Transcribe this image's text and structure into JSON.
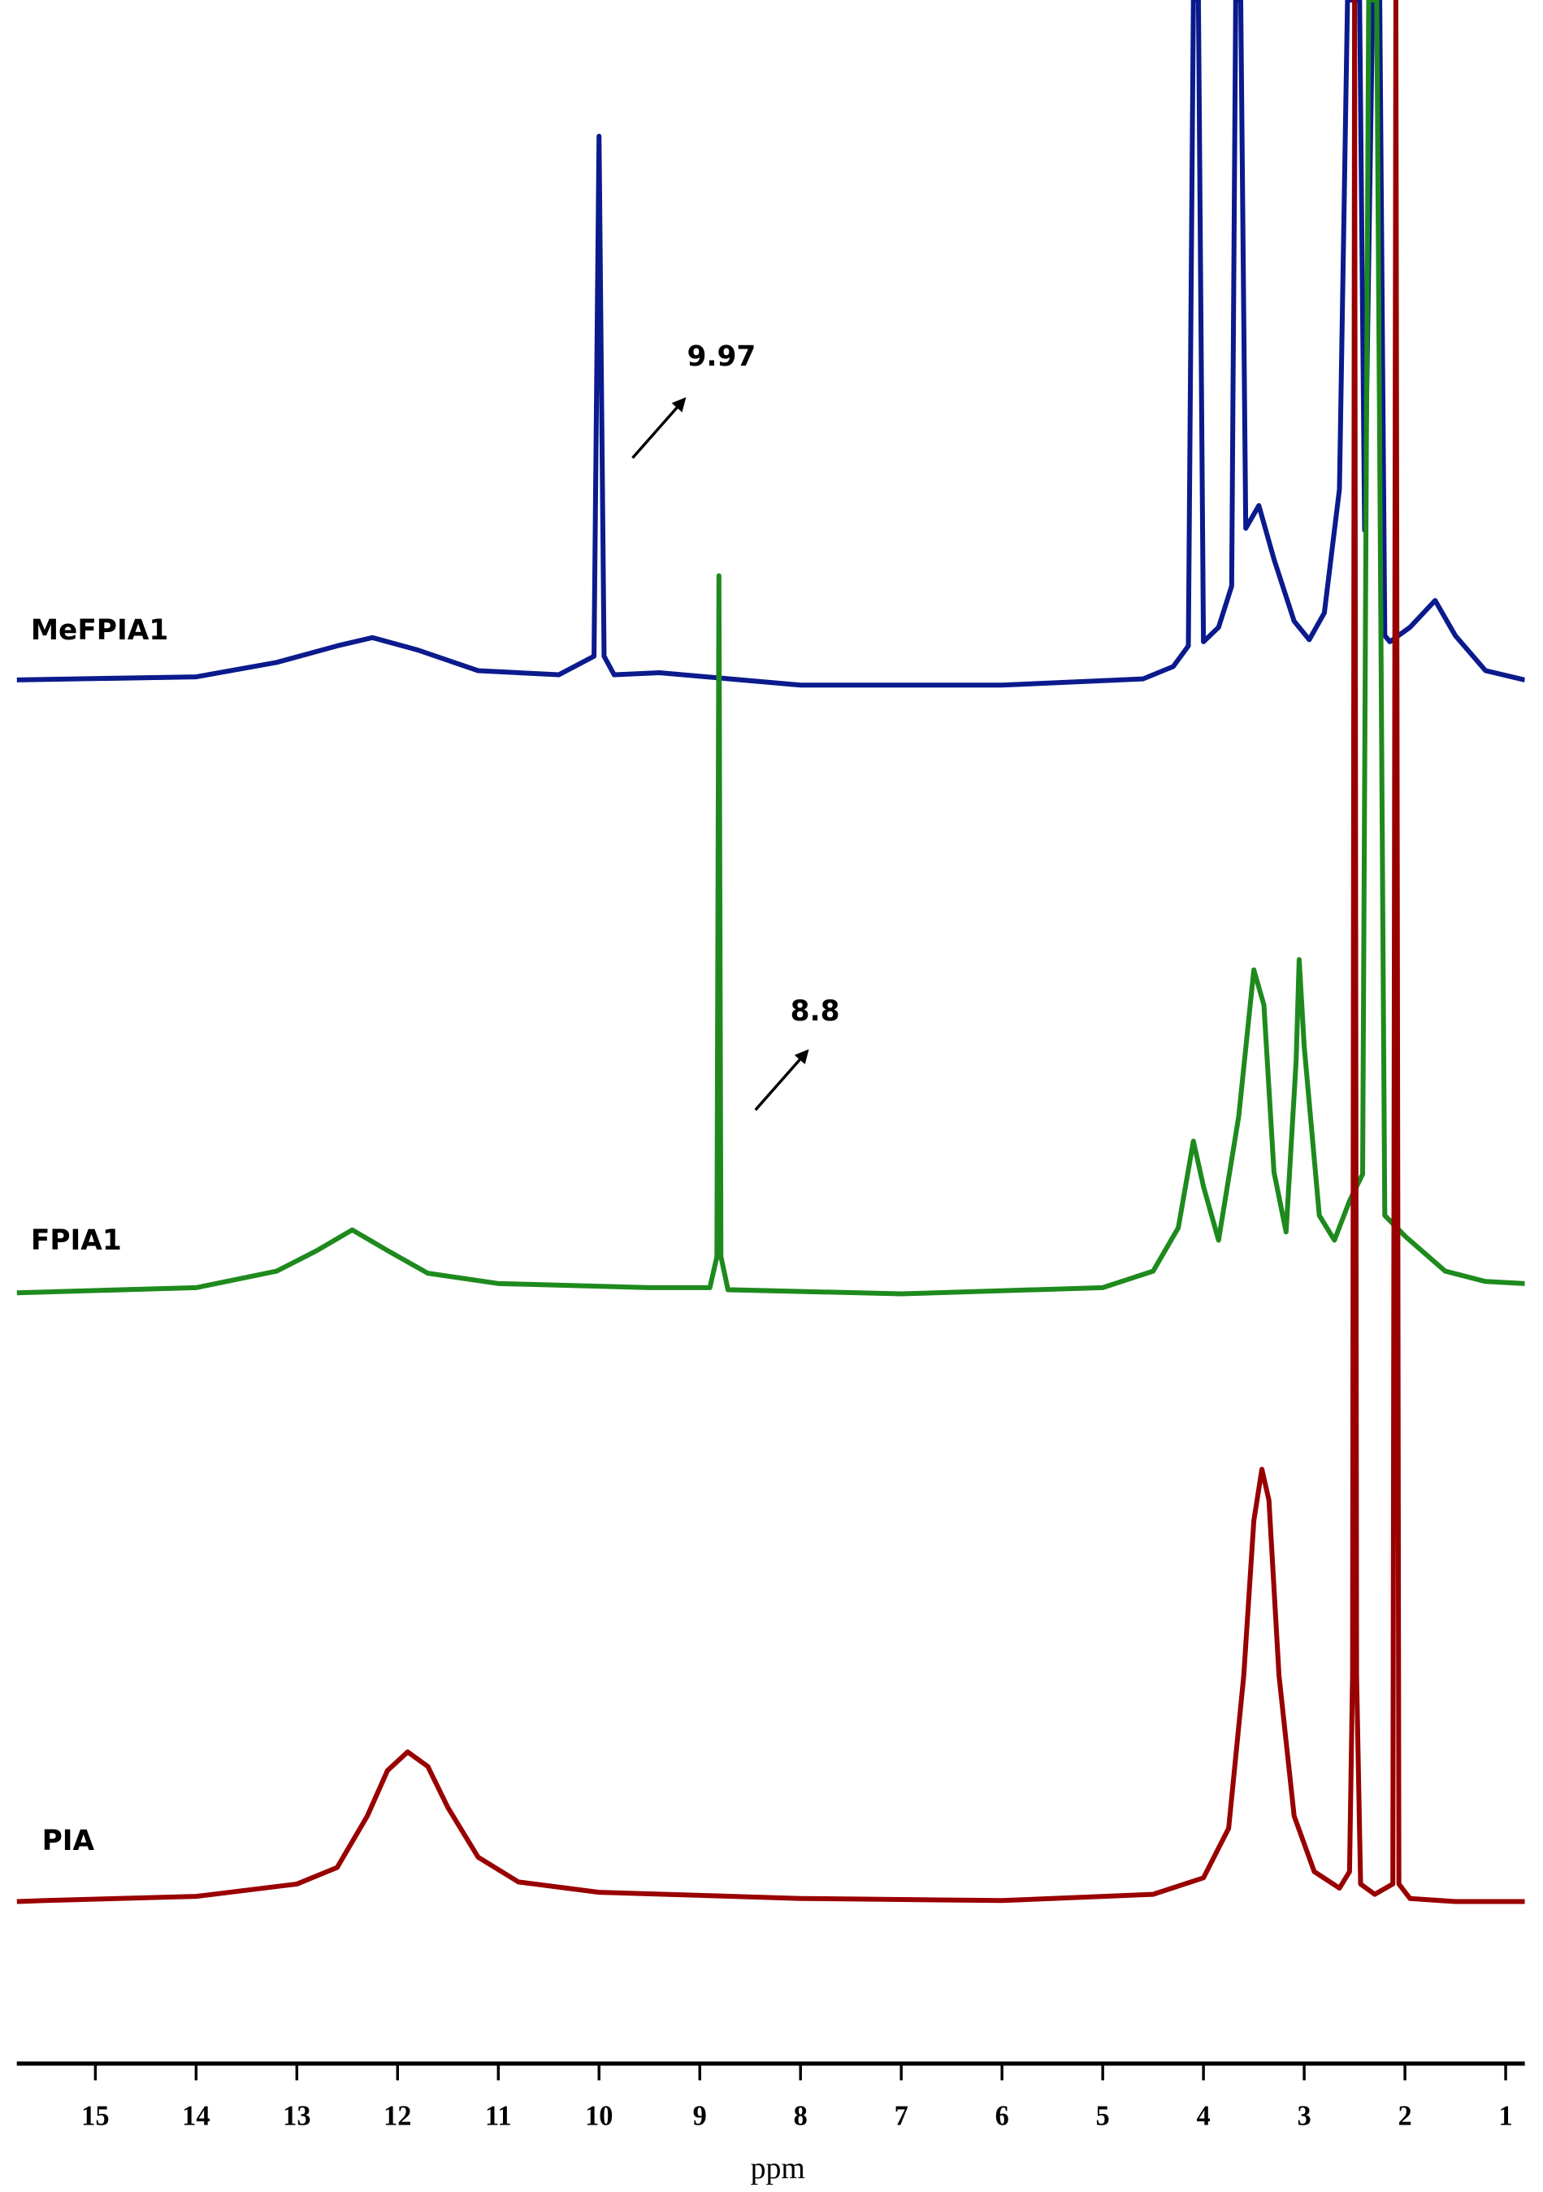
{
  "chart_data": {
    "type": "line",
    "xlabel": "ppm",
    "xlim": [
      15.78,
      0.81
    ],
    "ylim": [
      0,
      100
    ],
    "xticks": [
      15,
      14,
      13,
      12,
      11,
      10,
      9,
      8,
      7,
      6,
      5,
      4,
      3,
      2,
      1
    ],
    "series": [
      {
        "name": "MeFPIA1",
        "color": "#0b1a8c",
        "x": [
          15.78,
          14,
          13.2,
          12.6,
          12.25,
          11.8,
          11.2,
          10.4,
          10.05,
          10.0,
          9.95,
          9.85,
          9.4,
          8,
          6,
          4.6,
          4.3,
          4.15,
          4.1,
          4.05,
          4.0,
          3.85,
          3.72,
          3.68,
          3.63,
          3.58,
          3.45,
          3.3,
          3.1,
          2.95,
          2.8,
          2.65,
          2.57,
          2.45,
          2.4,
          2.32,
          2.25,
          2.2,
          2.15,
          1.95,
          1.7,
          1.5,
          1.2,
          0.81
        ],
        "values": [
          67.05,
          67.2,
          67.9,
          68.7,
          69.1,
          68.5,
          67.5,
          67.3,
          68.2,
          93.4,
          68.2,
          67.3,
          67.4,
          66.8,
          66.8,
          67.1,
          67.7,
          68.7,
          100,
          100,
          68.9,
          69.6,
          71.6,
          100,
          100,
          74.4,
          75.5,
          72.9,
          69.9,
          69.0,
          70.3,
          76.3,
          100,
          100,
          74.3,
          100,
          100,
          69.2,
          68.9,
          69.6,
          70.9,
          69.2,
          67.5,
          67.05
        ]
      },
      {
        "name": "FPIA1",
        "color": "#1e8a1e",
        "x": [
          15.78,
          14,
          13.2,
          12.8,
          12.45,
          12.1,
          11.7,
          11,
          9.5,
          8.9,
          8.83,
          8.81,
          8.79,
          8.72,
          7,
          5,
          4.5,
          4.25,
          4.1,
          4.0,
          3.85,
          3.65,
          3.5,
          3.4,
          3.3,
          3.18,
          3.08,
          3.05,
          3.0,
          2.85,
          2.7,
          2.55,
          2.42,
          2.36,
          2.28,
          2.2,
          2.0,
          1.6,
          1.2,
          0.81
        ],
        "values": [
          37.35,
          37.6,
          38.4,
          39.4,
          40.4,
          39.4,
          38.3,
          37.8,
          37.6,
          37.6,
          39.1,
          72.1,
          39.1,
          37.5,
          37.3,
          37.6,
          38.4,
          40.5,
          44.7,
          42.5,
          39.9,
          45.9,
          53.0,
          51.3,
          43.2,
          40.3,
          48.6,
          53.5,
          49.3,
          41.1,
          39.9,
          41.8,
          43.1,
          100,
          100,
          41.1,
          40.1,
          38.4,
          37.9,
          37.8
        ]
      },
      {
        "name": "PIA",
        "color": "#990000",
        "x": [
          15.78,
          15.5,
          14,
          13,
          12.6,
          12.3,
          12.1,
          11.9,
          11.7,
          11.5,
          11.2,
          10.8,
          10,
          8,
          6,
          4.5,
          4.0,
          3.75,
          3.6,
          3.5,
          3.42,
          3.35,
          3.25,
          3.1,
          2.9,
          2.65,
          2.55,
          2.52,
          2.5,
          2.48,
          2.44,
          2.3,
          2.12,
          2.09,
          2.06,
          1.95,
          1.5,
          0.81
        ],
        "values": [
          7.85,
          7.9,
          8.1,
          8.7,
          9.5,
          12.0,
          14.2,
          15.1,
          14.4,
          12.4,
          10.0,
          8.8,
          8.3,
          8.0,
          7.9,
          8.2,
          9.0,
          11.4,
          18.8,
          26.3,
          28.8,
          27.3,
          18.8,
          12.0,
          9.3,
          8.5,
          9.3,
          18.8,
          100,
          18.8,
          8.7,
          8.2,
          8.7,
          100,
          8.7,
          8.0,
          7.85,
          7.85
        ]
      }
    ],
    "annotations": [
      "9.97",
      "8.8"
    ]
  }
}
